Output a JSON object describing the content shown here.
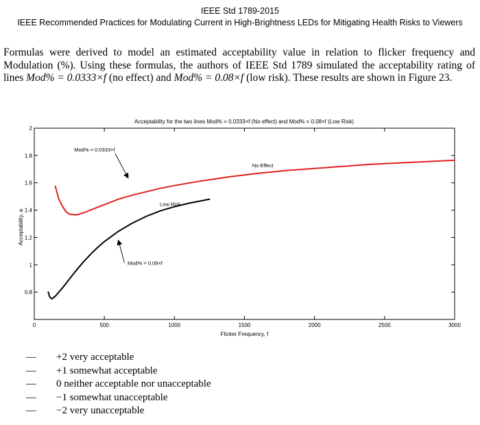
{
  "header": {
    "line1": "IEEE Std 1789-2015",
    "line2": "IEEE Recommended Practices for Modulating Current in High-Brightness LEDs for Mitigating Health Risks to Viewers"
  },
  "paragraph": {
    "part1": "Formulas were derived to model an estimated acceptability value in relation to flicker frequency and Modulation (%). Using these formulas, the authors of IEEE Std 1789 simulated the acceptability rating of lines ",
    "formula1": "Mod% = 0.0333×f",
    "part2": " (no effect) and ",
    "formula2": "Mod% = 0.08×f",
    "part3": " (low risk). These results are shown in Figure 23."
  },
  "chart_data": {
    "type": "line",
    "title": "Acceptability for the two lines Mod% = 0.0333×f (No effect)    and Mod% = 0.08×f (Low Risk)",
    "xlabel": "Flicker Frequency, f",
    "ylabel": "Acceptability, a",
    "xlim": [
      0,
      3000
    ],
    "ylim": [
      0.6,
      2
    ],
    "x_ticks": [
      "0",
      "500",
      "1000",
      "1500",
      "2000",
      "2500",
      "3000"
    ],
    "y_ticks": [
      "0.8",
      "1",
      "1.2",
      "1.4",
      "1.6",
      "1.8",
      "2"
    ],
    "series": [
      {
        "name": "No Effect",
        "color": "#e0201b",
        "x": [
          150,
          175,
          200,
          225,
          250,
          300,
          350,
          400,
          450,
          500,
          600,
          700,
          800,
          900,
          1000,
          1200,
          1400,
          1600,
          1800,
          2000,
          2200,
          2400,
          2600,
          2800,
          3000
        ],
        "y": [
          1.575,
          1.48,
          1.43,
          1.39,
          1.37,
          1.365,
          1.38,
          1.4,
          1.42,
          1.44,
          1.48,
          1.51,
          1.535,
          1.56,
          1.58,
          1.615,
          1.645,
          1.67,
          1.69,
          1.705,
          1.72,
          1.735,
          1.745,
          1.755,
          1.765
        ]
      },
      {
        "name": "Low Risk",
        "color": "#000000",
        "x": [
          100,
          110,
          125,
          150,
          175,
          200,
          250,
          300,
          350,
          400,
          450,
          500,
          600,
          700,
          800,
          900,
          1000,
          1100,
          1200,
          1250
        ],
        "y": [
          0.8,
          0.765,
          0.75,
          0.77,
          0.8,
          0.83,
          0.895,
          0.96,
          1.02,
          1.075,
          1.125,
          1.17,
          1.245,
          1.305,
          1.355,
          1.395,
          1.425,
          1.45,
          1.47,
          1.48
        ]
      }
    ],
    "annotations": [
      {
        "text": "Mod% = 0.0333×f",
        "x": 430,
        "y": 1.83,
        "arrow_to": [
          670,
          1.635
        ]
      },
      {
        "text": "No Effect",
        "x": 1630,
        "y": 1.715
      },
      {
        "text": "Low Risk",
        "x": 970,
        "y": 1.43
      },
      {
        "text": "Mod% = 0.08×f",
        "x": 790,
        "y": 1.0,
        "arrow_to": [
          600,
          1.18
        ]
      }
    ]
  },
  "scale": [
    {
      "dash": "—",
      "text": "+2 very acceptable"
    },
    {
      "dash": "—",
      "text": "+1 somewhat acceptable"
    },
    {
      "dash": "—",
      "text": "0 neither acceptable nor unacceptable"
    },
    {
      "dash": "—",
      "text": "−1 somewhat unacceptable"
    },
    {
      "dash": "—",
      "text": "−2 very unacceptable"
    }
  ]
}
